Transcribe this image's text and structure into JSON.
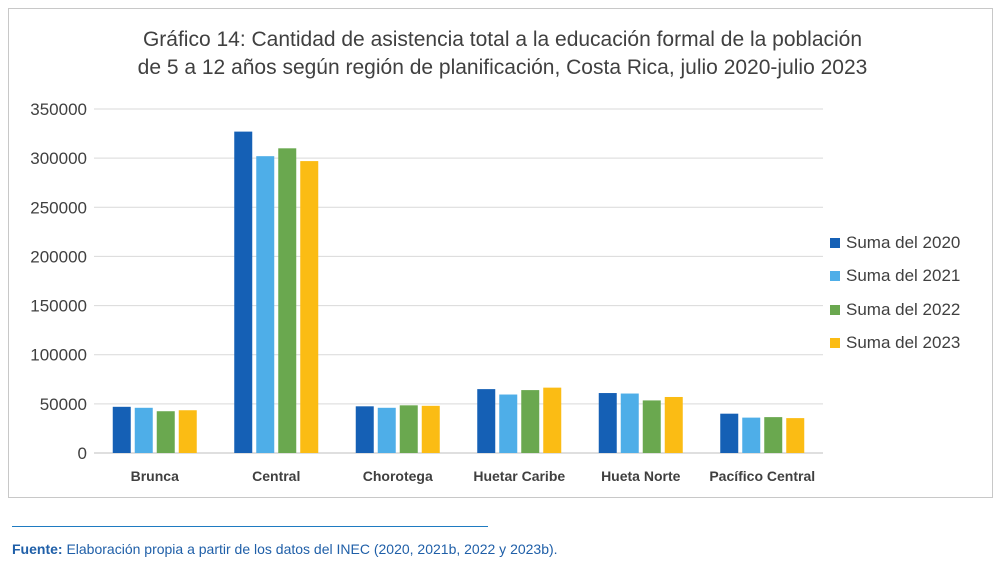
{
  "chart_data": {
    "type": "bar",
    "title_line1": "Gráfico 14: Cantidad de asistencia total a la educación formal de la población",
    "title_line2": "de 5 a 12 años según región de planificación, Costa Rica, julio 2020-julio 2023",
    "xlabel": "",
    "ylabel": "",
    "ylim": [
      0,
      350000
    ],
    "yticks": [
      "0",
      "50000",
      "100000",
      "150000",
      "200000",
      "250000",
      "300000",
      "350000"
    ],
    "grid": true,
    "legend_position": "right",
    "categories": [
      "Brunca",
      "Central",
      "Chorotega",
      "Huetar Caribe",
      "Hueta Norte",
      "Pacífico Central"
    ],
    "series": [
      {
        "name": "Suma del 2020",
        "color": "#1560b5",
        "values": [
          47000,
          327000,
          47500,
          65000,
          61000,
          40000
        ]
      },
      {
        "name": "Suma del 2021",
        "color": "#4eaee8",
        "values": [
          46000,
          302000,
          46000,
          59500,
          60500,
          36000
        ]
      },
      {
        "name": "Suma del 2022",
        "color": "#6aa84f",
        "values": [
          42500,
          310000,
          48500,
          64000,
          53500,
          36500
        ]
      },
      {
        "name": "Suma del 2023",
        "color": "#fbbc14",
        "values": [
          43500,
          297000,
          48000,
          66500,
          57000,
          35500
        ]
      }
    ]
  },
  "source": {
    "label": "Fuente:",
    "text": " Elaboración propia a partir de los datos del INEC (2020, 2021b, 2022 y 2023b)."
  },
  "colors": {
    "grid": "#d9d9d9",
    "axis": "#bfbfbf",
    "text": "#404040",
    "accent": "#1f7bc1"
  }
}
